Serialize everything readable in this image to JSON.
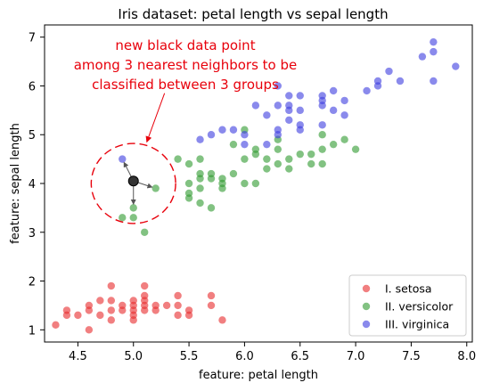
{
  "chart_data": {
    "type": "scatter",
    "title": "Iris dataset: petal length vs sepal length",
    "xlabel": "feature: petal length",
    "ylabel": "feature: sepal length",
    "xlim": [
      4.2,
      8.05
    ],
    "ylim": [
      0.75,
      7.25
    ],
    "xticks": [
      4.5,
      5.0,
      5.5,
      6.0,
      6.5,
      7.0,
      7.5,
      8.0
    ],
    "xtick_labels": [
      "4.5",
      "5.0",
      "5.5",
      "6.0",
      "6.5",
      "7.0",
      "7.5",
      "8.0"
    ],
    "yticks": [
      1,
      2,
      3,
      4,
      5,
      6,
      7
    ],
    "ytick_labels": [
      "1",
      "2",
      "3",
      "4",
      "5",
      "6",
      "7"
    ],
    "grid": false,
    "legend_position": "bottom-right",
    "series": [
      {
        "name": "I. setosa",
        "color": "#e8292c",
        "points": [
          [
            4.3,
            1.1
          ],
          [
            4.4,
            1.3
          ],
          [
            4.4,
            1.4
          ],
          [
            4.5,
            1.3
          ],
          [
            4.6,
            1.4
          ],
          [
            4.6,
            1.0
          ],
          [
            4.6,
            1.5
          ],
          [
            4.7,
            1.3
          ],
          [
            4.7,
            1.6
          ],
          [
            4.8,
            1.4
          ],
          [
            4.8,
            1.6
          ],
          [
            4.8,
            1.9
          ],
          [
            4.8,
            1.2
          ],
          [
            4.9,
            1.4
          ],
          [
            4.9,
            1.5
          ],
          [
            5.0,
            1.4
          ],
          [
            5.0,
            1.5
          ],
          [
            5.0,
            1.6
          ],
          [
            5.0,
            1.2
          ],
          [
            5.0,
            1.3
          ],
          [
            5.1,
            1.4
          ],
          [
            5.1,
            1.5
          ],
          [
            5.1,
            1.9
          ],
          [
            5.1,
            1.7
          ],
          [
            5.1,
            1.6
          ],
          [
            5.2,
            1.5
          ],
          [
            5.2,
            1.4
          ],
          [
            5.3,
            1.5
          ],
          [
            5.4,
            1.7
          ],
          [
            5.4,
            1.5
          ],
          [
            5.4,
            1.3
          ],
          [
            5.5,
            1.4
          ],
          [
            5.5,
            1.3
          ],
          [
            5.7,
            1.5
          ],
          [
            5.7,
            1.7
          ],
          [
            5.8,
            1.2
          ]
        ]
      },
      {
        "name": "II. versicolor",
        "color": "#2e9a2e",
        "points": [
          [
            4.9,
            3.3
          ],
          [
            5.0,
            3.5
          ],
          [
            5.0,
            3.3
          ],
          [
            5.1,
            3.0
          ],
          [
            5.2,
            3.9
          ],
          [
            5.4,
            4.5
          ],
          [
            5.5,
            4.0
          ],
          [
            5.5,
            3.7
          ],
          [
            5.5,
            3.8
          ],
          [
            5.5,
            4.4
          ],
          [
            5.6,
            3.6
          ],
          [
            5.6,
            3.9
          ],
          [
            5.6,
            4.1
          ],
          [
            5.6,
            4.5
          ],
          [
            5.6,
            4.2
          ],
          [
            5.7,
            3.5
          ],
          [
            5.7,
            4.1
          ],
          [
            5.7,
            4.2
          ],
          [
            5.8,
            3.9
          ],
          [
            5.8,
            4.1
          ],
          [
            5.8,
            4.0
          ],
          [
            5.9,
            4.2
          ],
          [
            5.9,
            4.8
          ],
          [
            6.0,
            4.0
          ],
          [
            6.0,
            4.5
          ],
          [
            6.0,
            5.1
          ],
          [
            6.1,
            4.0
          ],
          [
            6.1,
            4.6
          ],
          [
            6.1,
            4.7
          ],
          [
            6.2,
            4.3
          ],
          [
            6.2,
            4.5
          ],
          [
            6.3,
            4.4
          ],
          [
            6.3,
            4.7
          ],
          [
            6.3,
            4.9
          ],
          [
            6.4,
            4.3
          ],
          [
            6.4,
            4.5
          ],
          [
            6.5,
            4.6
          ],
          [
            6.6,
            4.4
          ],
          [
            6.6,
            4.6
          ],
          [
            6.7,
            4.4
          ],
          [
            6.7,
            4.7
          ],
          [
            6.7,
            5.0
          ],
          [
            6.8,
            4.8
          ],
          [
            6.9,
            4.9
          ],
          [
            7.0,
            4.7
          ]
        ]
      },
      {
        "name": "III. virginica",
        "color": "#3c3ce0",
        "points": [
          [
            4.9,
            4.5
          ],
          [
            5.6,
            4.9
          ],
          [
            5.7,
            5.0
          ],
          [
            5.8,
            5.1
          ],
          [
            5.9,
            5.1
          ],
          [
            6.0,
            4.8
          ],
          [
            6.0,
            5.0
          ],
          [
            6.1,
            5.6
          ],
          [
            6.2,
            4.8
          ],
          [
            6.2,
            5.4
          ],
          [
            6.3,
            5.1
          ],
          [
            6.3,
            5.6
          ],
          [
            6.3,
            6.0
          ],
          [
            6.3,
            5.0
          ],
          [
            6.4,
            5.3
          ],
          [
            6.4,
            5.6
          ],
          [
            6.4,
            5.5
          ],
          [
            6.4,
            5.8
          ],
          [
            6.5,
            5.1
          ],
          [
            6.5,
            5.5
          ],
          [
            6.5,
            5.8
          ],
          [
            6.5,
            5.2
          ],
          [
            6.7,
            5.2
          ],
          [
            6.7,
            5.6
          ],
          [
            6.7,
            5.7
          ],
          [
            6.7,
            5.8
          ],
          [
            6.8,
            5.5
          ],
          [
            6.8,
            5.9
          ],
          [
            6.9,
            5.4
          ],
          [
            6.9,
            5.7
          ],
          [
            7.1,
            5.9
          ],
          [
            7.2,
            6.1
          ],
          [
            7.2,
            6.0
          ],
          [
            7.3,
            6.3
          ],
          [
            7.4,
            6.1
          ],
          [
            7.6,
            6.6
          ],
          [
            7.7,
            6.1
          ],
          [
            7.7,
            6.7
          ],
          [
            7.7,
            6.9
          ],
          [
            7.9,
            6.4
          ]
        ]
      }
    ],
    "new_point": {
      "x": 5.0,
      "y": 4.05,
      "color": "#333333"
    },
    "nearest_neighbors": [
      [
        4.9,
        4.5
      ],
      [
        5.2,
        3.9
      ],
      [
        5.0,
        3.5
      ]
    ],
    "neighbor_circle": {
      "center": [
        5.0,
        4.0
      ],
      "radius_x": 0.38,
      "radius_y": 0.82,
      "color": "#e8000b"
    },
    "annotation": {
      "lines": [
        "new black data point",
        "among 3 nearest neighbors to be",
        "classified between 3 groups"
      ],
      "color": "#e8000b",
      "arrow_from": [
        5.28,
        5.85
      ],
      "arrow_to": [
        5.12,
        4.85
      ]
    }
  }
}
